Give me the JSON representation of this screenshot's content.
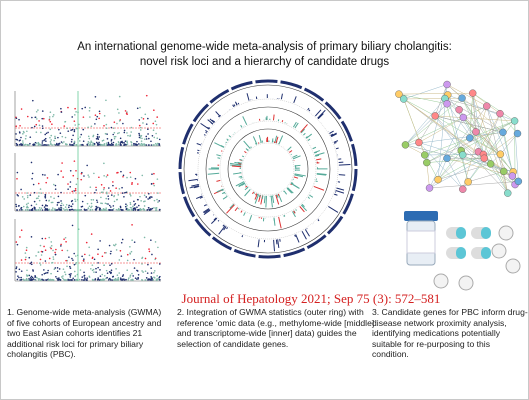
{
  "title": [
    "An international genome-wide meta-analysis of primary biliary cholangitis:",
    "novel risk loci and a hierarchy of candidate drugs"
  ],
  "citation": "Journal of Hepatology 2021; Sep 75 (3): 572–581",
  "captions": [
    [
      "1. Genome-wide meta-analysis (GWMA)",
      "of five cohorts of European ancestry and",
      "two East Asian cohorts identifies  21",
      "additional risk loci for primary biliary",
      "cholangitis (PBC)."
    ],
    [
      "2. Integration of GWMA statistics (outer  ring) with",
      "reference ’omic data (e.g., methylome-wide [middle]",
      "and transcriptome-wide [inner] data) guides the",
      "selection of candidate genes."
    ],
    [
      "3. Candidate genes for PBC inform drug-",
      "disease network proximity analysis,",
      "identifying  medications potentially",
      "suitable for re-purposing to this",
      "condition."
    ]
  ]
}
